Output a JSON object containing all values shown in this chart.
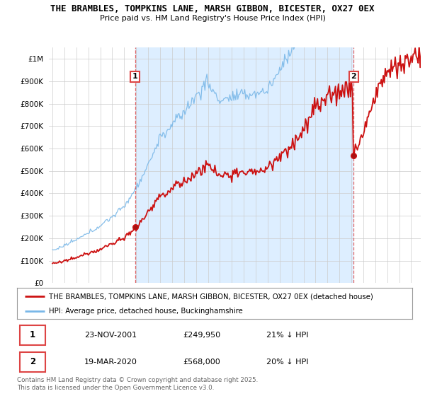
{
  "title_line1": "THE BRAMBLES, TOMPKINS LANE, MARSH GIBBON, BICESTER, OX27 0EX",
  "title_line2": "Price paid vs. HM Land Registry's House Price Index (HPI)",
  "legend_label1": "THE BRAMBLES, TOMPKINS LANE, MARSH GIBBON, BICESTER, OX27 0EX (detached house)",
  "legend_label2": "HPI: Average price, detached house, Buckinghamshire",
  "annotation1_date": "23-NOV-2001",
  "annotation1_price": "£249,950",
  "annotation1_hpi": "21% ↓ HPI",
  "annotation2_date": "19-MAR-2020",
  "annotation2_price": "£568,000",
  "annotation2_hpi": "20% ↓ HPI",
  "copyright_text": "Contains HM Land Registry data © Crown copyright and database right 2025.\nThis data is licensed under the Open Government Licence v3.0.",
  "sale1_year": 2001.9,
  "sale1_price": 249950,
  "sale2_year": 2020.2,
  "sale2_price": 568000,
  "hpi_color": "#7ab8e8",
  "price_color": "#cc1111",
  "vline_color": "#dd4444",
  "shading_color": "#ddeeff",
  "background_color": "#ffffff",
  "grid_color": "#cccccc",
  "ylim_max": 1050000,
  "ylim_min": 0,
  "xlim_min": 1994.7,
  "xlim_max": 2025.8
}
